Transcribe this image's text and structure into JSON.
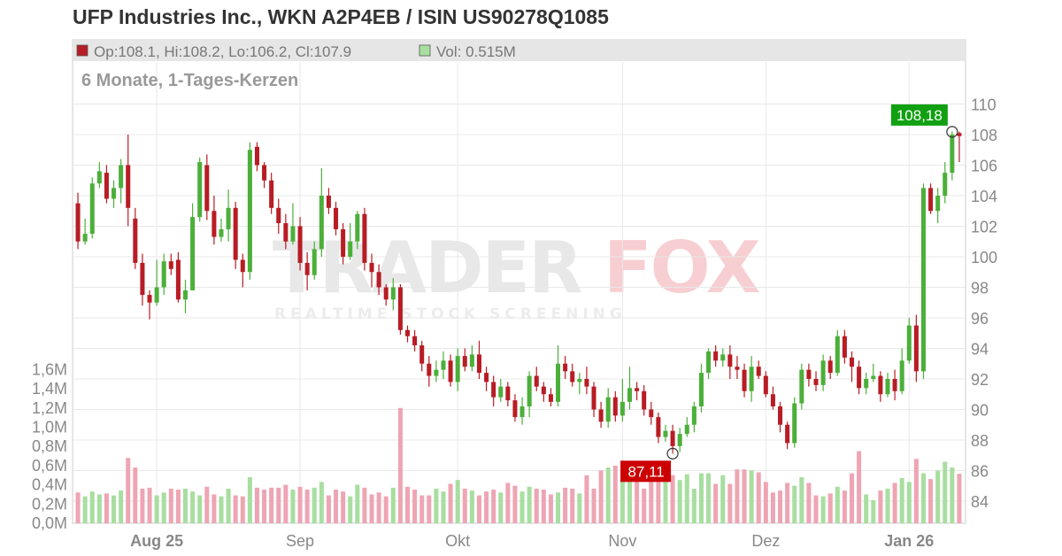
{
  "title": "UFP Industries Inc., WKN A2P4EB / ISIN US90278Q1085",
  "info": {
    "ohlc": "Op:108.1, Hi:108.2, Lo:106.2, Cl:107.9",
    "vol": "Vol: 0.515M"
  },
  "subtitle": "6 Monate, 1-Tages-Kerzen",
  "watermark": {
    "brand_left": "TRADER",
    "brand_right": "FOX",
    "tagline": "REALTIME STOCK SCREENING"
  },
  "colors": {
    "up": "#4caf3a",
    "down": "#b81c24",
    "vol_up": "#a8dea0",
    "vol_down": "#eea5b3",
    "label_high": "#11a011",
    "label_low": "#cc0000"
  },
  "chart_data": {
    "type": "candlestick",
    "price_axis": {
      "min": 83,
      "max": 111,
      "ticks": [
        84,
        86,
        88,
        90,
        92,
        94,
        96,
        98,
        100,
        102,
        104,
        106,
        108,
        110
      ]
    },
    "volume_axis": {
      "min": 0,
      "max": 2.0,
      "ticks": [
        "0,0M",
        "0,2M",
        "0,4M",
        "0,6M",
        "0,8M",
        "1,0M",
        "1,2M",
        "1,4M",
        "1,6M"
      ]
    },
    "x_labels": [
      {
        "label": "Aug 25",
        "index": 11
      },
      {
        "label": "Sep",
        "index": 31
      },
      {
        "label": "Okt",
        "index": 53
      },
      {
        "label": "Nov",
        "index": 76
      },
      {
        "label": "Dez",
        "index": 96
      },
      {
        "label": "Jan 26",
        "index": 116
      }
    ],
    "annotations": {
      "high": {
        "label": "108,18",
        "value": 108.18,
        "index": 122
      },
      "low": {
        "label": "87,11",
        "value": 87.11,
        "index": 83
      }
    },
    "candles": [
      [
        103.5,
        101.0,
        104.2,
        100.5,
        0.32
      ],
      [
        101.0,
        101.5,
        102.5,
        100.8,
        0.28
      ],
      [
        101.5,
        104.8,
        105.2,
        101.2,
        0.33
      ],
      [
        104.8,
        105.6,
        106.2,
        104.5,
        0.3
      ],
      [
        105.5,
        103.8,
        106.0,
        103.5,
        0.31
      ],
      [
        103.8,
        104.5,
        105.0,
        103.2,
        0.29
      ],
      [
        104.5,
        106.0,
        106.4,
        103.5,
        0.34
      ],
      [
        106.0,
        103.2,
        108.0,
        102.0,
        0.68
      ],
      [
        102.5,
        99.6,
        103.2,
        99.2,
        0.58
      ],
      [
        99.6,
        97.5,
        100.2,
        96.8,
        0.36
      ],
      [
        97.5,
        97.0,
        97.8,
        95.9,
        0.37
      ],
      [
        97.0,
        98.0,
        99.8,
        96.8,
        0.29
      ],
      [
        98.0,
        99.7,
        100.2,
        97.5,
        0.32
      ],
      [
        99.7,
        99.2,
        100.2,
        98.8,
        0.36
      ],
      [
        99.8,
        97.2,
        100.3,
        97.0,
        0.35
      ],
      [
        97.2,
        97.8,
        98.5,
        96.3,
        0.36
      ],
      [
        97.8,
        102.6,
        103.5,
        99.0,
        0.33
      ],
      [
        102.6,
        106.2,
        106.5,
        102.3,
        0.29
      ],
      [
        106.0,
        103.0,
        106.7,
        102.4,
        0.38
      ],
      [
        103.0,
        101.3,
        104.0,
        100.8,
        0.3
      ],
      [
        101.3,
        101.8,
        102.5,
        101.0,
        0.28
      ],
      [
        101.8,
        103.2,
        104.4,
        101.0,
        0.36
      ],
      [
        103.2,
        99.8,
        103.6,
        99.2,
        0.29
      ],
      [
        99.8,
        99.0,
        100.2,
        98.0,
        0.28
      ],
      [
        99.0,
        107.0,
        107.5,
        98.5,
        0.48
      ],
      [
        107.2,
        106.0,
        107.5,
        105.6,
        0.37
      ],
      [
        106.0,
        105.0,
        106.2,
        104.5,
        0.35
      ],
      [
        105.0,
        103.2,
        105.5,
        102.8,
        0.37
      ],
      [
        103.2,
        102.2,
        103.8,
        101.5,
        0.37
      ],
      [
        102.2,
        101.0,
        102.8,
        100.5,
        0.4
      ],
      [
        101.0,
        102.0,
        103.5,
        100.8,
        0.35
      ],
      [
        102.0,
        99.6,
        102.6,
        99.1,
        0.38
      ],
      [
        99.6,
        98.8,
        100.3,
        97.8,
        0.35
      ],
      [
        98.8,
        100.5,
        101.0,
        98.5,
        0.37
      ],
      [
        100.5,
        104.0,
        105.8,
        100.0,
        0.43
      ],
      [
        104.0,
        103.2,
        104.5,
        102.8,
        0.29
      ],
      [
        103.2,
        101.8,
        103.6,
        101.4,
        0.35
      ],
      [
        101.8,
        100.0,
        102.2,
        99.5,
        0.33
      ],
      [
        100.0,
        101.0,
        102.2,
        99.8,
        0.28
      ],
      [
        101.0,
        102.8,
        103.0,
        100.5,
        0.4
      ],
      [
        102.8,
        99.6,
        103.2,
        99.1,
        0.37
      ],
      [
        99.6,
        99.0,
        100.2,
        98.0,
        0.3
      ],
      [
        99.0,
        98.0,
        99.5,
        97.5,
        0.32
      ],
      [
        98.0,
        97.2,
        98.2,
        96.8,
        0.28
      ],
      [
        97.2,
        98.0,
        98.6,
        96.5,
        0.37
      ],
      [
        98.0,
        95.2,
        98.2,
        94.9,
        1.2
      ],
      [
        95.2,
        94.8,
        95.5,
        94.4,
        0.38
      ],
      [
        94.8,
        94.2,
        95.2,
        93.8,
        0.35
      ],
      [
        94.2,
        93.0,
        94.5,
        92.5,
        0.29
      ],
      [
        93.0,
        92.2,
        93.5,
        91.5,
        0.29
      ],
      [
        92.2,
        92.6,
        93.2,
        91.8,
        0.36
      ],
      [
        92.6,
        93.2,
        93.8,
        92.0,
        0.33
      ],
      [
        93.2,
        91.8,
        93.6,
        91.5,
        0.41
      ],
      [
        91.8,
        93.5,
        94.0,
        91.2,
        0.45
      ],
      [
        93.5,
        92.8,
        94.0,
        92.5,
        0.36
      ],
      [
        92.8,
        93.6,
        94.2,
        92.5,
        0.34
      ],
      [
        93.6,
        92.4,
        94.5,
        92.0,
        0.29
      ],
      [
        92.4,
        91.8,
        92.8,
        91.2,
        0.33
      ],
      [
        91.8,
        90.8,
        92.2,
        90.2,
        0.35
      ],
      [
        90.8,
        91.5,
        92.0,
        90.5,
        0.32
      ],
      [
        91.5,
        90.6,
        91.8,
        90.2,
        0.42
      ],
      [
        90.6,
        89.5,
        91.0,
        89.2,
        0.39
      ],
      [
        89.5,
        90.2,
        90.8,
        89.0,
        0.33
      ],
      [
        90.2,
        92.2,
        92.5,
        89.5,
        0.38
      ],
      [
        92.2,
        91.5,
        92.8,
        91.2,
        0.36
      ],
      [
        91.5,
        91.0,
        91.8,
        90.5,
        0.35
      ],
      [
        91.0,
        90.5,
        91.4,
        90.2,
        0.3
      ],
      [
        90.5,
        93.0,
        94.2,
        90.2,
        0.32
      ],
      [
        93.0,
        92.5,
        93.5,
        92.0,
        0.37
      ],
      [
        92.5,
        91.8,
        93.0,
        91.5,
        0.36
      ],
      [
        91.8,
        92.0,
        92.4,
        91.0,
        0.31
      ],
      [
        92.0,
        91.5,
        92.8,
        91.0,
        0.5
      ],
      [
        91.5,
        90.0,
        91.8,
        89.5,
        0.36
      ],
      [
        90.0,
        89.2,
        90.5,
        88.8,
        0.55
      ],
      [
        89.2,
        90.8,
        91.4,
        88.8,
        0.58
      ],
      [
        90.8,
        89.6,
        91.2,
        89.2,
        0.6
      ],
      [
        89.6,
        90.5,
        92.0,
        89.2,
        0.46
      ],
      [
        90.5,
        91.4,
        92.8,
        90.0,
        0.46
      ],
      [
        91.4,
        91.2,
        91.8,
        90.6,
        0.52
      ],
      [
        91.2,
        90.0,
        91.6,
        89.6,
        0.36
      ],
      [
        90.0,
        89.5,
        90.5,
        89.0,
        0.49
      ],
      [
        89.5,
        88.2,
        89.8,
        87.8,
        0.47
      ],
      [
        88.2,
        88.6,
        89.0,
        87.9,
        0.44
      ],
      [
        88.6,
        87.6,
        89.0,
        87.11,
        0.5
      ],
      [
        87.6,
        88.4,
        88.8,
        87.2,
        0.45
      ],
      [
        88.4,
        89.0,
        89.5,
        88.2,
        0.51
      ],
      [
        89.0,
        90.2,
        90.5,
        88.5,
        0.36
      ],
      [
        90.2,
        92.4,
        93.0,
        89.8,
        0.52
      ],
      [
        92.4,
        93.8,
        94.0,
        92.0,
        0.52
      ],
      [
        93.8,
        93.2,
        94.2,
        92.8,
        0.41
      ],
      [
        93.2,
        93.6,
        94.0,
        92.8,
        0.5
      ],
      [
        93.6,
        92.8,
        94.2,
        92.0,
        0.41
      ],
      [
        92.8,
        92.6,
        93.5,
        92.0,
        0.56
      ],
      [
        92.6,
        91.2,
        93.0,
        90.8,
        0.56
      ],
      [
        91.2,
        92.8,
        93.5,
        90.5,
        0.55
      ],
      [
        92.8,
        92.2,
        93.2,
        92.0,
        0.53
      ],
      [
        92.2,
        91.0,
        92.5,
        90.8,
        0.43
      ],
      [
        91.0,
        90.2,
        91.5,
        90.0,
        0.32
      ],
      [
        90.2,
        89.0,
        90.5,
        88.5,
        0.34
      ],
      [
        89.0,
        87.8,
        89.2,
        87.4,
        0.42
      ],
      [
        87.8,
        90.4,
        90.8,
        87.5,
        0.39
      ],
      [
        90.4,
        92.6,
        93.0,
        90.0,
        0.48
      ],
      [
        92.6,
        92.0,
        93.0,
        91.5,
        0.42
      ],
      [
        92.0,
        91.6,
        92.5,
        91.2,
        0.29
      ],
      [
        91.6,
        93.2,
        93.6,
        91.2,
        0.28
      ],
      [
        93.2,
        92.4,
        93.5,
        92.0,
        0.31
      ],
      [
        92.4,
        94.8,
        95.2,
        92.2,
        0.38
      ],
      [
        94.8,
        93.4,
        95.2,
        93.0,
        0.34
      ],
      [
        93.4,
        92.8,
        93.8,
        91.8,
        0.52
      ],
      [
        92.8,
        91.4,
        93.2,
        91.0,
        0.75
      ],
      [
        91.4,
        92.0,
        92.4,
        91.0,
        0.3
      ],
      [
        92.0,
        92.2,
        93.0,
        91.8,
        0.24
      ],
      [
        92.2,
        91.0,
        92.5,
        90.5,
        0.34
      ],
      [
        91.0,
        92.0,
        92.4,
        90.8,
        0.36
      ],
      [
        92.0,
        91.2,
        92.6,
        90.6,
        0.42
      ],
      [
        91.2,
        93.2,
        94.0,
        91.0,
        0.47
      ],
      [
        93.2,
        95.5,
        96.0,
        93.0,
        0.43
      ],
      [
        95.5,
        92.5,
        96.2,
        91.8,
        0.67
      ],
      [
        92.5,
        104.5,
        104.8,
        92.0,
        0.52
      ],
      [
        104.5,
        103.0,
        104.8,
        102.8,
        0.46
      ],
      [
        103.0,
        104.0,
        104.5,
        102.2,
        0.55
      ],
      [
        104.0,
        105.5,
        106.2,
        103.5,
        0.64
      ],
      [
        105.5,
        108.0,
        108.2,
        105.0,
        0.58
      ],
      [
        108.1,
        107.9,
        108.2,
        106.2,
        0.515
      ]
    ]
  }
}
